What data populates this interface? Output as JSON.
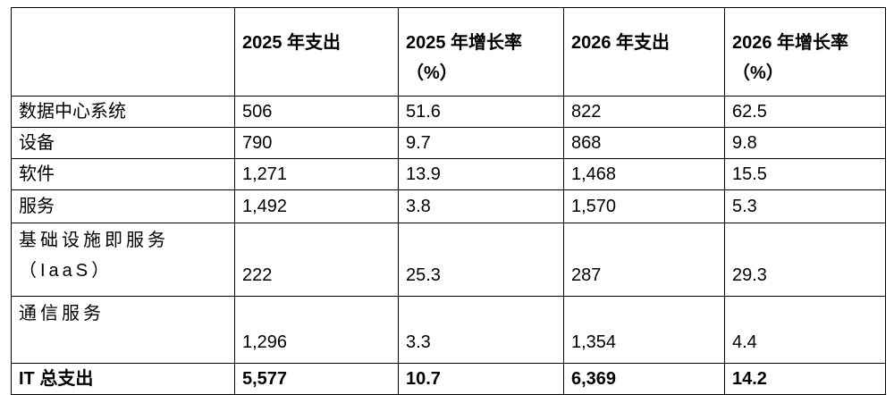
{
  "table": {
    "header": [
      "",
      "2025 年支出",
      "2025 年增长率（%）",
      "2026 年支出",
      "2026 年增长率（%）"
    ],
    "rows": [
      [
        "数据中心系统",
        "506",
        "51.6",
        "822",
        "62.5"
      ],
      [
        "设备",
        "790",
        "9.7",
        "868",
        "9.8"
      ],
      [
        "软件",
        "1,271",
        "13.9",
        "1,468",
        "15.5"
      ],
      [
        "服务",
        "1,492",
        "3.8",
        "1,570",
        "5.3"
      ],
      [
        "基础设施即服务（IaaS）",
        "222",
        "25.3",
        "287",
        "29.3"
      ],
      [
        "通信服务",
        "1,296",
        "3.3",
        "1,354",
        "4.4"
      ],
      [
        "IT 总支出",
        "5,577",
        "10.7",
        "6,369",
        "14.2"
      ]
    ]
  }
}
